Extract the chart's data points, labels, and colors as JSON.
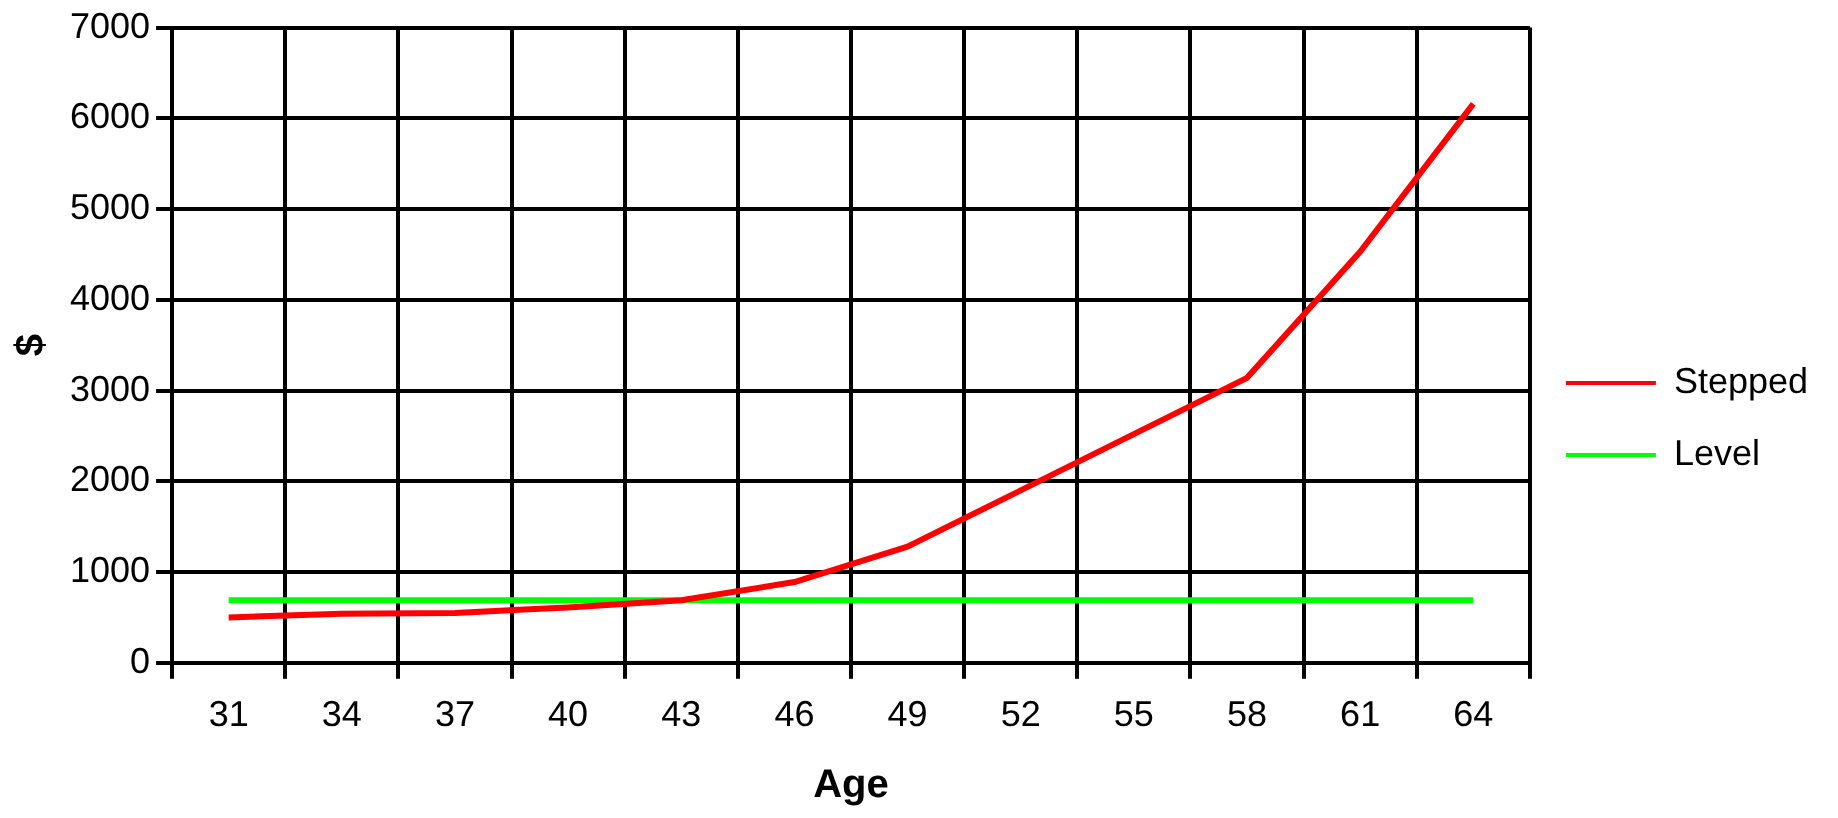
{
  "chart_data": {
    "type": "line",
    "xlabel": "Age",
    "ylabel": "$",
    "categories": [
      "31",
      "34",
      "37",
      "40",
      "43",
      "46",
      "49",
      "52",
      "55",
      "58",
      "61",
      "64"
    ],
    "series": [
      {
        "name": "Stepped",
        "color": "#ff0000",
        "values": [
          500,
          540,
          550,
          610,
          690,
          890,
          1280,
          1900,
          2520,
          3140,
          4530,
          6160
        ]
      },
      {
        "name": "Level",
        "color": "#00ff00",
        "values": [
          690,
          690,
          690,
          690,
          690,
          690,
          690,
          690,
          690,
          690,
          690,
          690
        ]
      }
    ],
    "ylim": [
      0,
      7000
    ],
    "yticks": [
      0,
      1000,
      2000,
      3000,
      4000,
      5000,
      6000,
      7000
    ],
    "grid": true,
    "legend": "right",
    "marker": "none",
    "line_style": "solid"
  }
}
